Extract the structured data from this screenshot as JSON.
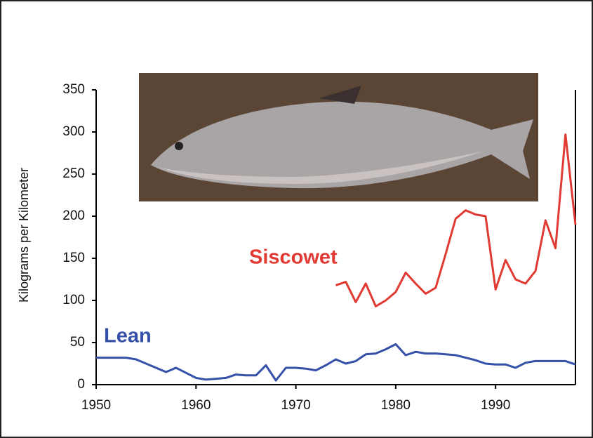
{
  "chart_data": {
    "type": "line",
    "y_label": "Kilograms per Kilometer",
    "x": [
      1950,
      1951,
      1952,
      1953,
      1954,
      1955,
      1956,
      1957,
      1958,
      1959,
      1960,
      1961,
      1962,
      1963,
      1964,
      1965,
      1966,
      1967,
      1968,
      1969,
      1970,
      1971,
      1972,
      1973,
      1974,
      1975,
      1976,
      1977,
      1978,
      1979,
      1980,
      1981,
      1982,
      1983,
      1984,
      1985,
      1986,
      1987,
      1988,
      1989,
      1990,
      1991,
      1992,
      1993,
      1994,
      1995,
      1996,
      1997,
      1998
    ],
    "series": [
      {
        "name": "Lean",
        "color": "#3550a8",
        "values": [
          32,
          32,
          32,
          32,
          30,
          25,
          20,
          15,
          20,
          14,
          8,
          6,
          7,
          8,
          12,
          11,
          11,
          23,
          5,
          20,
          20,
          19,
          17,
          23,
          30,
          25,
          28,
          36,
          37,
          42,
          48,
          35,
          39,
          37,
          37,
          36,
          35,
          32,
          29,
          25,
          24,
          24,
          20,
          26,
          28,
          28,
          28,
          28,
          24
        ]
      },
      {
        "name": "Siscowet",
        "color": "#e03a32",
        "values": [
          null,
          null,
          null,
          null,
          null,
          null,
          null,
          null,
          null,
          null,
          null,
          null,
          null,
          null,
          null,
          null,
          null,
          null,
          null,
          null,
          null,
          null,
          null,
          null,
          118,
          122,
          98,
          120,
          93,
          100,
          110,
          133,
          120,
          108,
          115,
          155,
          197,
          207,
          202,
          200,
          113,
          148,
          125,
          120,
          135,
          195,
          162,
          297,
          190
        ]
      }
    ],
    "xlim": [
      1950,
      1998
    ],
    "ylim": [
      0,
      350
    ],
    "xticks": [
      1950,
      1960,
      1970,
      1980,
      1990
    ],
    "yticks": [
      0,
      50,
      100,
      150,
      200,
      250,
      300,
      350
    ]
  }
}
